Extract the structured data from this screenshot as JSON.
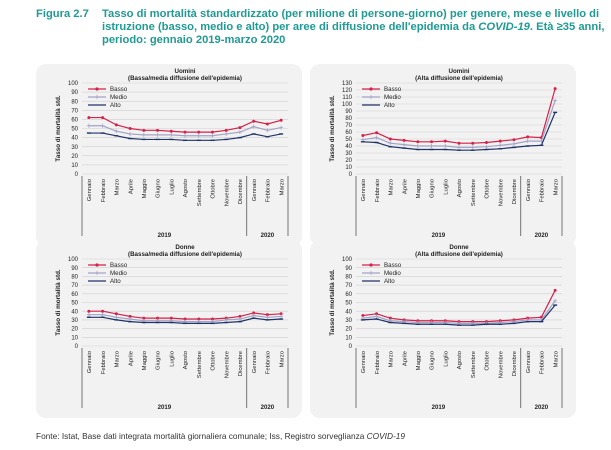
{
  "figure": {
    "number": "Figura 2.7",
    "title_main": "Tasso di mortalità standardizzato (per milione di persone-giorno) per genere, mese e livello di istruzione (basso, medio e alto) per aree di diffusione dell'epidemia da",
    "title_italic": "COVID-19",
    "title_end": ". Età ≥35 anni, periodo: gennaio 2019-marzo 2020"
  },
  "source": {
    "text": "Fonte: Istat, Base dati integrata mortalità giornaliera comunale; Iss, Registro sorveglianza",
    "italic": "COVID-19"
  },
  "colors": {
    "basso": "#d4224a",
    "medio": "#a3a3c6",
    "alto": "#1f3468",
    "grid": "#cfcfcf",
    "panel_bg": "#f2f2f2",
    "title": "#1f9a94"
  },
  "chart_data": [
    {
      "type": "line",
      "title": "Uomini",
      "subtitle": "(Bassa/media diffusione dell'epidemia)",
      "ylabel": "Tasso di mortalità std.",
      "ylim": [
        0,
        100
      ],
      "yticks": [
        0,
        10,
        20,
        30,
        40,
        50,
        60,
        70,
        80,
        90,
        100
      ],
      "legend": "top-left",
      "grid": true,
      "categories": [
        "Gennaio",
        "Febbraio",
        "Marzo",
        "Aprile",
        "Maggio",
        "Giugno",
        "Luglio",
        "Agosto",
        "Settembre",
        "Ottobre",
        "Novembre",
        "Dicembre",
        "Gennaio",
        "Febbraio",
        "Marzo"
      ],
      "year_labels": [
        "2019",
        "2020"
      ],
      "series": [
        {
          "name": "Basso",
          "values": [
            62,
            62,
            54,
            50,
            48,
            48,
            47,
            46,
            46,
            46,
            48,
            51,
            58,
            55,
            59
          ]
        },
        {
          "name": "Medio",
          "values": [
            53,
            53,
            47,
            44,
            43,
            43,
            43,
            42,
            42,
            42,
            44,
            46,
            52,
            48,
            51
          ]
        },
        {
          "name": "Alto",
          "values": [
            45,
            45,
            42,
            39,
            38,
            38,
            38,
            37,
            37,
            37,
            38,
            40,
            44,
            41,
            44
          ]
        }
      ]
    },
    {
      "type": "line",
      "title": "Uomini",
      "subtitle": "(Alta diffusione dell'epidemia)",
      "ylabel": "Tasso di mortalità std.",
      "ylim": [
        0,
        130
      ],
      "yticks": [
        0,
        10,
        20,
        30,
        40,
        50,
        60,
        70,
        80,
        90,
        100,
        110,
        120,
        130
      ],
      "legend": "top-left",
      "grid": true,
      "categories": [
        "Gennaio",
        "Febbraio",
        "Marzo",
        "Aprile",
        "Maggio",
        "Giugno",
        "Luglio",
        "Agosto",
        "Settembre",
        "Ottobre",
        "Novembre",
        "Dicembre",
        "Gennaio",
        "Febbraio",
        "Marzo"
      ],
      "year_labels": [
        "2019",
        "2020"
      ],
      "series": [
        {
          "name": "Basso",
          "values": [
            55,
            59,
            50,
            48,
            46,
            46,
            47,
            44,
            44,
            45,
            47,
            49,
            53,
            52,
            122
          ]
        },
        {
          "name": "Medio",
          "values": [
            49,
            52,
            44,
            42,
            40,
            40,
            40,
            38,
            38,
            39,
            41,
            43,
            47,
            47,
            105
          ]
        },
        {
          "name": "Alto",
          "values": [
            46,
            45,
            39,
            37,
            35,
            35,
            35,
            34,
            34,
            35,
            36,
            38,
            40,
            41,
            88
          ]
        }
      ]
    },
    {
      "type": "line",
      "title": "Donne",
      "subtitle": "(Bassa/media diffusione dell'epidemia)",
      "ylabel": "Tasso di mortalità std.",
      "ylim": [
        0,
        100
      ],
      "yticks": [
        0,
        10,
        20,
        30,
        40,
        50,
        60,
        70,
        80,
        90,
        100
      ],
      "legend": "top-left",
      "grid": true,
      "categories": [
        "Gennaio",
        "Febbraio",
        "Marzo",
        "Aprile",
        "Maggio",
        "Giugno",
        "Luglio",
        "Agosto",
        "Settembre",
        "Ottobre",
        "Novembre",
        "Dicembre",
        "Gennaio",
        "Febbraio",
        "Marzo"
      ],
      "year_labels": [
        "2019",
        "2020"
      ],
      "series": [
        {
          "name": "Basso",
          "values": [
            40,
            40,
            37,
            34,
            32,
            32,
            32,
            31,
            31,
            31,
            32,
            34,
            38,
            36,
            37
          ]
        },
        {
          "name": "Medio",
          "values": [
            36,
            36,
            33,
            31,
            29,
            29,
            29,
            28,
            28,
            28,
            30,
            31,
            35,
            33,
            34
          ]
        },
        {
          "name": "Alto",
          "values": [
            33,
            33,
            30,
            28,
            27,
            27,
            27,
            26,
            26,
            26,
            27,
            28,
            32,
            30,
            31
          ]
        }
      ]
    },
    {
      "type": "line",
      "title": "Donne",
      "subtitle": "(Alta diffusione dell'epidemia)",
      "ylabel": "Tasso di mortalità std.",
      "ylim": [
        0,
        100
      ],
      "yticks": [
        0,
        10,
        20,
        30,
        40,
        50,
        60,
        70,
        80,
        90,
        100
      ],
      "legend": "top-left",
      "grid": true,
      "categories": [
        "Gennaio",
        "Febbraio",
        "Marzo",
        "Aprile",
        "Maggio",
        "Giugno",
        "Luglio",
        "Agosto",
        "Settembre",
        "Ottobre",
        "Novembre",
        "Dicembre",
        "Gennaio",
        "Febbraio",
        "Marzo"
      ],
      "year_labels": [
        "2019",
        "2020"
      ],
      "series": [
        {
          "name": "Basso",
          "values": [
            35,
            37,
            32,
            30,
            29,
            29,
            29,
            28,
            28,
            28,
            29,
            30,
            32,
            33,
            64
          ]
        },
        {
          "name": "Medio",
          "values": [
            32,
            34,
            29,
            28,
            27,
            27,
            27,
            26,
            26,
            26,
            27,
            28,
            30,
            30,
            52
          ]
        },
        {
          "name": "Alto",
          "values": [
            30,
            31,
            27,
            26,
            25,
            25,
            25,
            24,
            24,
            25,
            25,
            26,
            28,
            28,
            47
          ]
        }
      ]
    }
  ]
}
